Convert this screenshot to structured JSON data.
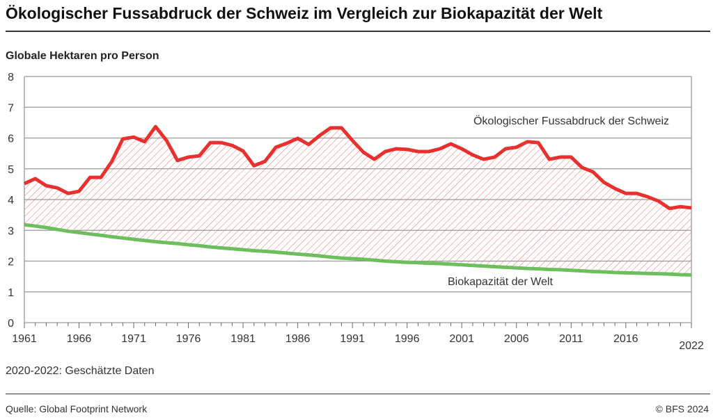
{
  "title": "Ökologischer Fussabdruck der Schweiz im Vergleich zur Biokapazität der Welt",
  "note": "2020-2022: Geschätzte Daten",
  "source": "Quelle: Global Footprint Network",
  "copyright": "© BFS 2024",
  "chart_data": {
    "type": "line",
    "title": "Ökologischer Fussabdruck der Schweiz im Vergleich zur Biokapazität der Welt",
    "ylabel": "Globale Hektaren pro Person",
    "xlabel": "",
    "xlim": [
      1961,
      2022
    ],
    "ylim": [
      0,
      8
    ],
    "yticks": [
      0,
      1,
      2,
      3,
      4,
      5,
      6,
      7,
      8
    ],
    "xticks": [
      1961,
      1966,
      1971,
      1976,
      1981,
      1986,
      1991,
      1996,
      2001,
      2006,
      2011,
      2016,
      2022
    ],
    "grid": true,
    "fill_between": "hatched red",
    "colors": {
      "footprint": "#e8302e",
      "biocapacity": "#6cbf5c",
      "hatch": "#f08080"
    },
    "x": [
      1961,
      1962,
      1963,
      1964,
      1965,
      1966,
      1967,
      1968,
      1969,
      1970,
      1971,
      1972,
      1973,
      1974,
      1975,
      1976,
      1977,
      1978,
      1979,
      1980,
      1981,
      1982,
      1983,
      1984,
      1985,
      1986,
      1987,
      1988,
      1989,
      1990,
      1991,
      1992,
      1993,
      1994,
      1995,
      1996,
      1997,
      1998,
      1999,
      2000,
      2001,
      2002,
      2003,
      2004,
      2005,
      2006,
      2007,
      2008,
      2009,
      2010,
      2011,
      2012,
      2013,
      2014,
      2015,
      2016,
      2017,
      2018,
      2019,
      2020,
      2021,
      2022
    ],
    "series": [
      {
        "name": "Ökologischer Fussabdruck der Schweiz",
        "values": [
          4.52,
          4.68,
          4.45,
          4.38,
          4.2,
          4.27,
          4.72,
          4.72,
          5.24,
          5.97,
          6.03,
          5.88,
          6.37,
          5.92,
          5.27,
          5.38,
          5.42,
          5.85,
          5.85,
          5.76,
          5.58,
          5.1,
          5.24,
          5.7,
          5.83,
          5.99,
          5.79,
          6.08,
          6.33,
          6.33,
          5.92,
          5.54,
          5.31,
          5.56,
          5.65,
          5.63,
          5.56,
          5.56,
          5.65,
          5.81,
          5.65,
          5.45,
          5.31,
          5.38,
          5.65,
          5.7,
          5.88,
          5.85,
          5.31,
          5.38,
          5.38,
          5.04,
          4.9,
          4.56,
          4.36,
          4.2,
          4.2,
          4.09,
          3.95,
          3.71,
          3.77,
          3.73
        ]
      },
      {
        "name": "Biokapazität der Welt",
        "values": [
          3.18,
          3.14,
          3.09,
          3.03,
          2.97,
          2.93,
          2.88,
          2.84,
          2.79,
          2.75,
          2.71,
          2.67,
          2.63,
          2.6,
          2.57,
          2.53,
          2.5,
          2.46,
          2.43,
          2.4,
          2.37,
          2.34,
          2.32,
          2.29,
          2.26,
          2.23,
          2.2,
          2.17,
          2.13,
          2.1,
          2.08,
          2.06,
          2.03,
          2.0,
          1.98,
          1.96,
          1.95,
          1.93,
          1.92,
          1.9,
          1.88,
          1.86,
          1.84,
          1.82,
          1.8,
          1.78,
          1.76,
          1.75,
          1.73,
          1.72,
          1.7,
          1.68,
          1.66,
          1.65,
          1.63,
          1.62,
          1.61,
          1.6,
          1.59,
          1.58,
          1.56,
          1.55
        ]
      }
    ]
  }
}
